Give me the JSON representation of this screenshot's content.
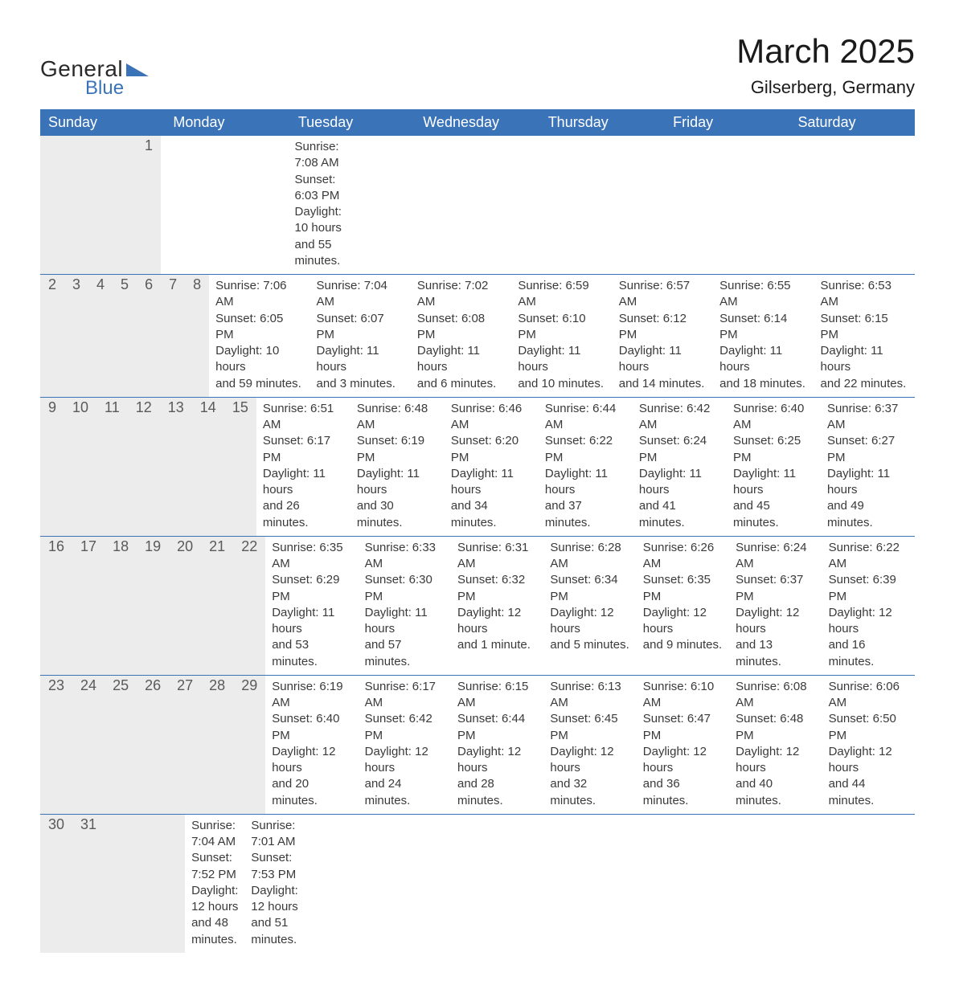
{
  "logo": {
    "text_general": "General",
    "text_blue": "Blue",
    "triangle_color": "#3b73b9"
  },
  "title": "March 2025",
  "location": "Gilserberg, Germany",
  "colors": {
    "header_bg": "#3b73b9",
    "header_text": "#ffffff",
    "daynum_bg": "#ececec",
    "daynum_text": "#5a5a5a",
    "body_text": "#3a3a3a",
    "row_border": "#3b73b9",
    "page_bg": "#ffffff"
  },
  "fonts": {
    "title_size": 42,
    "location_size": 22,
    "weekday_size": 18,
    "daynum_size": 18,
    "content_size": 15
  },
  "weekdays": [
    "Sunday",
    "Monday",
    "Tuesday",
    "Wednesday",
    "Thursday",
    "Friday",
    "Saturday"
  ],
  "weeks": [
    [
      null,
      null,
      null,
      null,
      null,
      null,
      {
        "num": "1",
        "sunrise": "Sunrise: 7:08 AM",
        "sunset": "Sunset: 6:03 PM",
        "daylight1": "Daylight: 10 hours",
        "daylight2": "and 55 minutes."
      }
    ],
    [
      {
        "num": "2",
        "sunrise": "Sunrise: 7:06 AM",
        "sunset": "Sunset: 6:05 PM",
        "daylight1": "Daylight: 10 hours",
        "daylight2": "and 59 minutes."
      },
      {
        "num": "3",
        "sunrise": "Sunrise: 7:04 AM",
        "sunset": "Sunset: 6:07 PM",
        "daylight1": "Daylight: 11 hours",
        "daylight2": "and 3 minutes."
      },
      {
        "num": "4",
        "sunrise": "Sunrise: 7:02 AM",
        "sunset": "Sunset: 6:08 PM",
        "daylight1": "Daylight: 11 hours",
        "daylight2": "and 6 minutes."
      },
      {
        "num": "5",
        "sunrise": "Sunrise: 6:59 AM",
        "sunset": "Sunset: 6:10 PM",
        "daylight1": "Daylight: 11 hours",
        "daylight2": "and 10 minutes."
      },
      {
        "num": "6",
        "sunrise": "Sunrise: 6:57 AM",
        "sunset": "Sunset: 6:12 PM",
        "daylight1": "Daylight: 11 hours",
        "daylight2": "and 14 minutes."
      },
      {
        "num": "7",
        "sunrise": "Sunrise: 6:55 AM",
        "sunset": "Sunset: 6:14 PM",
        "daylight1": "Daylight: 11 hours",
        "daylight2": "and 18 minutes."
      },
      {
        "num": "8",
        "sunrise": "Sunrise: 6:53 AM",
        "sunset": "Sunset: 6:15 PM",
        "daylight1": "Daylight: 11 hours",
        "daylight2": "and 22 minutes."
      }
    ],
    [
      {
        "num": "9",
        "sunrise": "Sunrise: 6:51 AM",
        "sunset": "Sunset: 6:17 PM",
        "daylight1": "Daylight: 11 hours",
        "daylight2": "and 26 minutes."
      },
      {
        "num": "10",
        "sunrise": "Sunrise: 6:48 AM",
        "sunset": "Sunset: 6:19 PM",
        "daylight1": "Daylight: 11 hours",
        "daylight2": "and 30 minutes."
      },
      {
        "num": "11",
        "sunrise": "Sunrise: 6:46 AM",
        "sunset": "Sunset: 6:20 PM",
        "daylight1": "Daylight: 11 hours",
        "daylight2": "and 34 minutes."
      },
      {
        "num": "12",
        "sunrise": "Sunrise: 6:44 AM",
        "sunset": "Sunset: 6:22 PM",
        "daylight1": "Daylight: 11 hours",
        "daylight2": "and 37 minutes."
      },
      {
        "num": "13",
        "sunrise": "Sunrise: 6:42 AM",
        "sunset": "Sunset: 6:24 PM",
        "daylight1": "Daylight: 11 hours",
        "daylight2": "and 41 minutes."
      },
      {
        "num": "14",
        "sunrise": "Sunrise: 6:40 AM",
        "sunset": "Sunset: 6:25 PM",
        "daylight1": "Daylight: 11 hours",
        "daylight2": "and 45 minutes."
      },
      {
        "num": "15",
        "sunrise": "Sunrise: 6:37 AM",
        "sunset": "Sunset: 6:27 PM",
        "daylight1": "Daylight: 11 hours",
        "daylight2": "and 49 minutes."
      }
    ],
    [
      {
        "num": "16",
        "sunrise": "Sunrise: 6:35 AM",
        "sunset": "Sunset: 6:29 PM",
        "daylight1": "Daylight: 11 hours",
        "daylight2": "and 53 minutes."
      },
      {
        "num": "17",
        "sunrise": "Sunrise: 6:33 AM",
        "sunset": "Sunset: 6:30 PM",
        "daylight1": "Daylight: 11 hours",
        "daylight2": "and 57 minutes."
      },
      {
        "num": "18",
        "sunrise": "Sunrise: 6:31 AM",
        "sunset": "Sunset: 6:32 PM",
        "daylight1": "Daylight: 12 hours",
        "daylight2": "and 1 minute."
      },
      {
        "num": "19",
        "sunrise": "Sunrise: 6:28 AM",
        "sunset": "Sunset: 6:34 PM",
        "daylight1": "Daylight: 12 hours",
        "daylight2": "and 5 minutes."
      },
      {
        "num": "20",
        "sunrise": "Sunrise: 6:26 AM",
        "sunset": "Sunset: 6:35 PM",
        "daylight1": "Daylight: 12 hours",
        "daylight2": "and 9 minutes."
      },
      {
        "num": "21",
        "sunrise": "Sunrise: 6:24 AM",
        "sunset": "Sunset: 6:37 PM",
        "daylight1": "Daylight: 12 hours",
        "daylight2": "and 13 minutes."
      },
      {
        "num": "22",
        "sunrise": "Sunrise: 6:22 AM",
        "sunset": "Sunset: 6:39 PM",
        "daylight1": "Daylight: 12 hours",
        "daylight2": "and 16 minutes."
      }
    ],
    [
      {
        "num": "23",
        "sunrise": "Sunrise: 6:19 AM",
        "sunset": "Sunset: 6:40 PM",
        "daylight1": "Daylight: 12 hours",
        "daylight2": "and 20 minutes."
      },
      {
        "num": "24",
        "sunrise": "Sunrise: 6:17 AM",
        "sunset": "Sunset: 6:42 PM",
        "daylight1": "Daylight: 12 hours",
        "daylight2": "and 24 minutes."
      },
      {
        "num": "25",
        "sunrise": "Sunrise: 6:15 AM",
        "sunset": "Sunset: 6:44 PM",
        "daylight1": "Daylight: 12 hours",
        "daylight2": "and 28 minutes."
      },
      {
        "num": "26",
        "sunrise": "Sunrise: 6:13 AM",
        "sunset": "Sunset: 6:45 PM",
        "daylight1": "Daylight: 12 hours",
        "daylight2": "and 32 minutes."
      },
      {
        "num": "27",
        "sunrise": "Sunrise: 6:10 AM",
        "sunset": "Sunset: 6:47 PM",
        "daylight1": "Daylight: 12 hours",
        "daylight2": "and 36 minutes."
      },
      {
        "num": "28",
        "sunrise": "Sunrise: 6:08 AM",
        "sunset": "Sunset: 6:48 PM",
        "daylight1": "Daylight: 12 hours",
        "daylight2": "and 40 minutes."
      },
      {
        "num": "29",
        "sunrise": "Sunrise: 6:06 AM",
        "sunset": "Sunset: 6:50 PM",
        "daylight1": "Daylight: 12 hours",
        "daylight2": "and 44 minutes."
      }
    ],
    [
      {
        "num": "30",
        "sunrise": "Sunrise: 7:04 AM",
        "sunset": "Sunset: 7:52 PM",
        "daylight1": "Daylight: 12 hours",
        "daylight2": "and 48 minutes."
      },
      {
        "num": "31",
        "sunrise": "Sunrise: 7:01 AM",
        "sunset": "Sunset: 7:53 PM",
        "daylight1": "Daylight: 12 hours",
        "daylight2": "and 51 minutes."
      },
      null,
      null,
      null,
      null,
      null
    ]
  ]
}
